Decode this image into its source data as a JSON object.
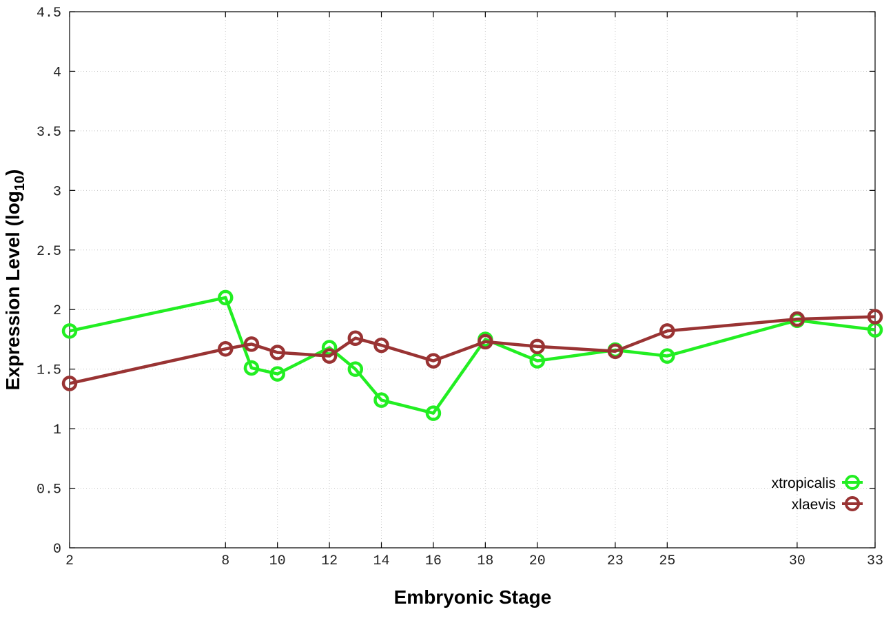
{
  "chart_data": {
    "type": "line",
    "xlabel": "Embryonic Stage",
    "ylabel_main": "Expression Level (log",
    "ylabel_sub": "10",
    "ylabel_close": ")",
    "xlim": [
      2,
      33
    ],
    "ylim": [
      0,
      4.5
    ],
    "x_ticks": [
      2,
      8,
      10,
      12,
      14,
      16,
      18,
      20,
      23,
      25,
      30,
      33
    ],
    "y_ticks": [
      0,
      0.5,
      1,
      1.5,
      2,
      2.5,
      3,
      3.5,
      4,
      4.5
    ],
    "y_tick_labels": [
      "0",
      "0.5",
      "1",
      "1.5",
      "2",
      "2.5",
      "3",
      "3.5",
      "4",
      "4.5"
    ],
    "grid": true,
    "legend_position": "bottom-right",
    "x": [
      2,
      8,
      9,
      10,
      12,
      13,
      14,
      16,
      18,
      20,
      23,
      25,
      30,
      33
    ],
    "series": [
      {
        "name": "xtropicalis",
        "color": "#22ee22",
        "values": [
          1.82,
          2.1,
          1.51,
          1.46,
          1.68,
          1.5,
          1.24,
          1.13,
          1.75,
          1.57,
          1.66,
          1.61,
          1.91,
          1.83
        ]
      },
      {
        "name": "xlaevis",
        "color": "#993333",
        "values": [
          1.38,
          1.67,
          1.71,
          1.64,
          1.61,
          1.76,
          1.7,
          1.57,
          1.73,
          1.69,
          1.65,
          1.82,
          1.92,
          1.94
        ]
      }
    ]
  }
}
